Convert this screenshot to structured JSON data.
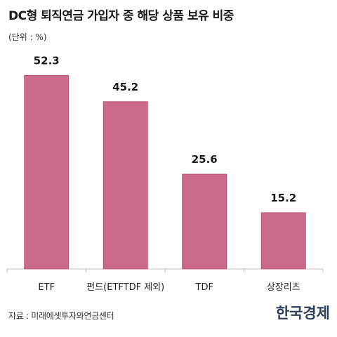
{
  "header": {
    "title": "DC형 퇴직연금 가입자 중 해당 상품 보유 비중",
    "unit_label": "(단위 : %)"
  },
  "footer": {
    "source": "자료 : 미래에셋투자와연금센터",
    "logo": "한국경제"
  },
  "colors": {
    "bar": "#cc6a8a",
    "bar_stroke": "#b85377",
    "axis": "#bbbbbb",
    "text": "#222222"
  },
  "chart_data": {
    "type": "bar",
    "title": "DC형 퇴직연금 가입자 중 해당 상품 보유 비중",
    "xlabel": "",
    "ylabel": "",
    "unit": "%",
    "categories": [
      "ETF",
      "펀드(ETFTDF 제외)",
      "TDF",
      "상장리츠"
    ],
    "values": [
      52.3,
      45.2,
      25.6,
      15.2
    ],
    "value_labels": [
      "52.3",
      "45.2",
      "25.6",
      "15.2"
    ],
    "ylim": [
      0,
      60
    ],
    "grid": false,
    "legend": "none"
  }
}
